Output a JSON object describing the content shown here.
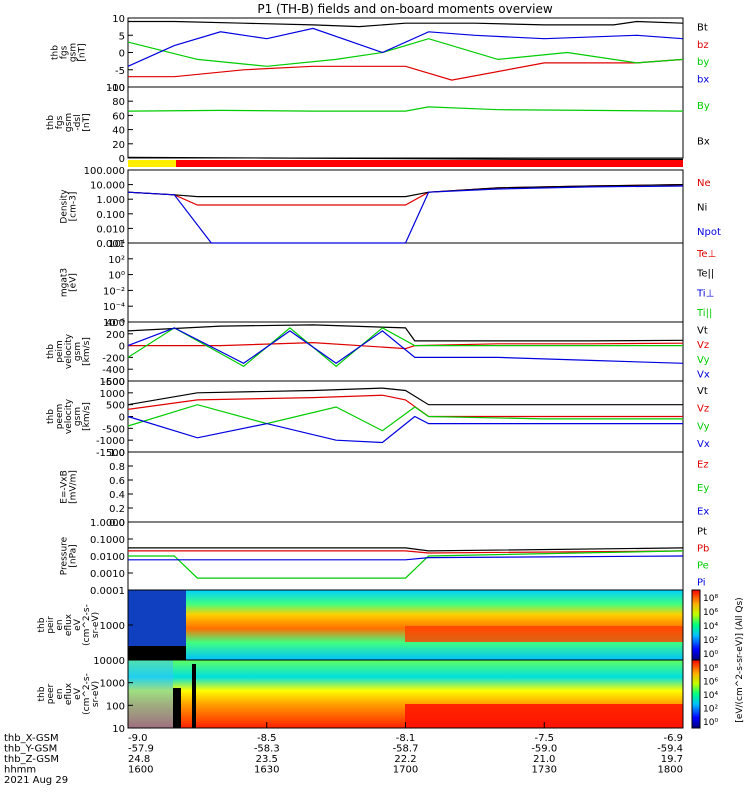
{
  "title": "P1 (TH-B) fields and on-board moments overview",
  "colors": {
    "black": "#000000",
    "red": "#e00000",
    "green": "#00cc00",
    "blue": "#0000e0",
    "yellow": "#ffee00",
    "bar_red": "#ff0000"
  },
  "panels": [
    {
      "id": "fgs",
      "ylabel": [
        "thb",
        "fgs",
        "gsm",
        "[nT]"
      ],
      "ticks": [
        "10",
        "5",
        "0",
        "-5",
        "-10"
      ],
      "legend": [
        {
          "text": "Bt",
          "color": "#000000"
        },
        {
          "text": "bz",
          "color": "#e00000"
        },
        {
          "text": "by",
          "color": "#00cc00"
        },
        {
          "text": "bx",
          "color": "#0000e0"
        }
      ]
    },
    {
      "id": "fgs-dsl",
      "ylabel": [
        "thb",
        "fgs",
        "gsm",
        "-dsl",
        "[nT]"
      ],
      "ticks": [
        "100",
        "80",
        "60",
        "40",
        "20",
        "0"
      ],
      "legend": [
        {
          "text": "By",
          "color": "#00cc00"
        },
        {
          "text": "Bx",
          "color": "#000000"
        }
      ]
    },
    {
      "id": "density",
      "ylabel": [
        "Density",
        "[cm-3]"
      ],
      "ticks": [
        "100.000",
        "10.000",
        "1.000",
        "0.100",
        "0.010",
        "0.001"
      ],
      "legend": [
        {
          "text": "Ne",
          "color": "#e00000"
        },
        {
          "text": "Ni",
          "color": "#000000"
        },
        {
          "text": "Npot",
          "color": "#0000e0"
        }
      ]
    },
    {
      "id": "temperature",
      "ylabel": [
        "mgat3",
        "[eV]"
      ],
      "ticks": [
        "10⁴",
        "10²",
        "10⁰",
        "10⁻²",
        "10⁻⁴",
        "10⁻⁶"
      ],
      "legend": [
        {
          "text": "Te⊥",
          "color": "#e00000"
        },
        {
          "text": "Te||",
          "color": "#000000"
        },
        {
          "text": "Ti⊥",
          "color": "#0000e0"
        },
        {
          "text": "Ti||",
          "color": "#00cc00"
        }
      ]
    },
    {
      "id": "peim-velocity",
      "ylabel": [
        "thb",
        "peim",
        "velocity",
        "gsm",
        "[km/s]"
      ],
      "ticks": [
        "400",
        "200",
        "0",
        "-200",
        "-400",
        "-600"
      ],
      "legend": [
        {
          "text": "Vt",
          "color": "#000000"
        },
        {
          "text": "Vz",
          "color": "#e00000"
        },
        {
          "text": "Vy",
          "color": "#00cc00"
        },
        {
          "text": "Vx",
          "color": "#0000e0"
        }
      ]
    },
    {
      "id": "peem-velocity",
      "ylabel": [
        "thb",
        "peem",
        "velocity",
        "gsm",
        "[km/s]"
      ],
      "ticks": [
        "1500",
        "1000",
        "500",
        "0",
        "-500",
        "-1000",
        "-1500"
      ],
      "legend": [
        {
          "text": "Vt",
          "color": "#000000"
        },
        {
          "text": "Vz",
          "color": "#e00000"
        },
        {
          "text": "Vy",
          "color": "#00cc00"
        },
        {
          "text": "Vx",
          "color": "#0000e0"
        }
      ]
    },
    {
      "id": "efield",
      "ylabel": [
        "E=-VxB",
        "[mV/m]"
      ],
      "ticks": [
        "1.0",
        "0.8",
        "0.6",
        "0.4",
        "0.2",
        "0.0"
      ],
      "legend": [
        {
          "text": "Ez",
          "color": "#e00000"
        },
        {
          "text": "Ey",
          "color": "#00cc00"
        },
        {
          "text": "Ex",
          "color": "#0000e0"
        }
      ]
    },
    {
      "id": "pressure",
      "ylabel": [
        "Pressure",
        "[nPa]"
      ],
      "ticks": [
        "1.0000",
        "0.1000",
        "0.0100",
        "0.0010",
        "0.0001"
      ],
      "legend": [
        {
          "text": "Pt",
          "color": "#000000"
        },
        {
          "text": "Pb",
          "color": "#e00000"
        },
        {
          "text": "Pe",
          "color": "#00cc00"
        },
        {
          "text": "Pi",
          "color": "#0000e0"
        }
      ]
    },
    {
      "id": "peir-spectrogram",
      "ylabel": [
        "thb",
        "peir",
        "en",
        "eflux",
        "eV",
        "(cm^2-s-",
        "sr-eV)"
      ],
      "ticks": [
        "1000"
      ]
    },
    {
      "id": "peer-spectrogram",
      "ylabel": [
        "thb",
        "peer",
        "en",
        "eflux",
        "eV",
        "(cm^2-s-",
        "sr-eV)"
      ],
      "ticks": [
        "10000",
        "1000",
        "100",
        "10"
      ]
    }
  ],
  "colorbar": {
    "label": "[eV/(cm^2-s-sr-eV)] (All Qs)",
    "ticks_upper": [
      "10⁸",
      "10⁶",
      "10⁴",
      "10²",
      "10⁰"
    ],
    "ticks_lower": [
      "10⁸",
      "10⁶",
      "10⁴",
      "10²",
      "10⁰"
    ]
  },
  "xaxis": {
    "row_labels": [
      "thb_X-GSM",
      "thb_Y-GSM",
      "thb_Z-GSM",
      "hhmm",
      "2021 Aug 29"
    ],
    "columns": [
      [
        "-9.0",
        "-57.9",
        "24.8",
        "1600"
      ],
      [
        "-8.5",
        "-58.3",
        "23.5",
        "1630"
      ],
      [
        "-8.1",
        "-58.7",
        "22.2",
        "1700"
      ],
      [
        "-7.5",
        "-59.0",
        "21.0",
        "1730"
      ],
      [
        "-6.9",
        "-59.4",
        "19.7",
        "1800"
      ]
    ]
  },
  "chart_data": {
    "type": "line",
    "title": "P1 (TH-B) fields and on-board moments overview",
    "x_unit": "hhmm",
    "x_range": [
      1600,
      1800
    ],
    "x_ticks": [
      1600,
      1630,
      1700,
      1730,
      1800
    ],
    "panels": [
      {
        "name": "thb fgs gsm [nT]",
        "ylim": [
          -10,
          10
        ],
        "series": [
          {
            "name": "Bt",
            "color": "#000000",
            "x": [
              0,
              10,
              25,
              40,
              50,
              60,
              75,
              90,
              105,
              110,
              120
            ],
            "y": [
              9,
              9,
              8.5,
              8,
              7.5,
              8.5,
              8.5,
              8,
              8,
              9,
              8.5
            ]
          },
          {
            "name": "bz",
            "color": "#e00000",
            "x": [
              0,
              10,
              25,
              40,
              60,
              70,
              90,
              110,
              120
            ],
            "y": [
              -7,
              -7,
              -5,
              -4,
              -4,
              -8,
              -3,
              -3,
              -2
            ]
          },
          {
            "name": "by",
            "color": "#00cc00",
            "x": [
              0,
              15,
              30,
              45,
              55,
              65,
              80,
              95,
              110,
              120
            ],
            "y": [
              3,
              -2,
              -4,
              -2,
              0,
              4,
              -2,
              0,
              -3,
              -2
            ]
          },
          {
            "name": "bx",
            "color": "#0000e0",
            "x": [
              0,
              10,
              20,
              30,
              40,
              55,
              65,
              75,
              90,
              110,
              120
            ],
            "y": [
              -4,
              2,
              6,
              4,
              7,
              0,
              6,
              5,
              4,
              5,
              4
            ]
          }
        ]
      },
      {
        "name": "thb fgs gsm -dsl [nT]",
        "ylim": [
          0,
          100
        ],
        "series": [
          {
            "name": "By",
            "color": "#00cc00",
            "x": [
              0,
              20,
              40,
              60,
              65,
              80,
              100,
              120
            ],
            "y": [
              66,
              67,
              66,
              66,
              72,
              68,
              67,
              66
            ]
          },
          {
            "name": "Bx",
            "color": "#000000",
            "x": [
              0,
              30,
              60,
              90,
              120
            ],
            "y": [
              1,
              0,
              -1,
              -2,
              -2
            ]
          }
        ]
      },
      {
        "name": "Density [cm-3]",
        "ylim": [
          0.001,
          100
        ],
        "log": true,
        "series": [
          {
            "name": "Ne",
            "color": "#e00000",
            "x": [
              0,
              10,
              15,
              60,
              65,
              80,
              100,
              120
            ],
            "y": [
              3,
              2,
              0.4,
              0.4,
              3,
              6,
              8,
              10
            ]
          },
          {
            "name": "Ni",
            "color": "#000000",
            "x": [
              0,
              10,
              15,
              60,
              65,
              80,
              100,
              120
            ],
            "y": [
              3,
              2,
              1.5,
              1.5,
              3,
              6,
              8,
              10
            ]
          },
          {
            "name": "Npot",
            "color": "#0000e0",
            "x": [
              0,
              10,
              18,
              60,
              65,
              80,
              100,
              120
            ],
            "y": [
              3,
              2,
              0.001,
              0.001,
              3,
              5,
              7,
              8
            ]
          }
        ]
      },
      {
        "name": "thb peim velocity gsm [km/s]",
        "ylim": [
          -600,
          400
        ],
        "series": [
          {
            "name": "Vt",
            "color": "#000000",
            "x": [
              0,
              20,
              40,
              60,
              62,
              80,
              100,
              120
            ],
            "y": [
              250,
              330,
              350,
              300,
              80,
              80,
              80,
              90
            ]
          },
          {
            "name": "Vz",
            "color": "#e00000",
            "x": [
              0,
              20,
              40,
              60,
              62,
              80,
              100,
              120
            ],
            "y": [
              0,
              0,
              50,
              -50,
              0,
              30,
              30,
              40
            ]
          },
          {
            "name": "Vy",
            "color": "#00cc00",
            "x": [
              0,
              10,
              25,
              35,
              45,
              55,
              62,
              80,
              100,
              120
            ],
            "y": [
              -200,
              300,
              -350,
              300,
              -350,
              300,
              0,
              0,
              0,
              0
            ]
          },
          {
            "name": "Vx",
            "color": "#0000e0",
            "x": [
              0,
              10,
              25,
              35,
              45,
              55,
              62,
              80,
              100,
              120
            ],
            "y": [
              0,
              300,
              -300,
              250,
              -300,
              250,
              -200,
              -200,
              -250,
              -300
            ]
          }
        ]
      },
      {
        "name": "thb peem velocity gsm [km/s]",
        "ylim": [
          -1500,
          1500
        ],
        "series": [
          {
            "name": "Vt",
            "color": "#000000",
            "x": [
              0,
              15,
              40,
              55,
              60,
              65,
              90,
              120
            ],
            "y": [
              500,
              1000,
              1100,
              1200,
              1100,
              500,
              500,
              500
            ]
          },
          {
            "name": "Vz",
            "color": "#e00000",
            "x": [
              0,
              15,
              40,
              55,
              60,
              65,
              90,
              120
            ],
            "y": [
              300,
              700,
              800,
              900,
              700,
              0,
              0,
              0
            ]
          },
          {
            "name": "Vy",
            "color": "#00cc00",
            "x": [
              0,
              15,
              30,
              45,
              55,
              62,
              65,
              90,
              120
            ],
            "y": [
              -400,
              500,
              -300,
              400,
              -600,
              400,
              0,
              -100,
              -100
            ]
          },
          {
            "name": "Vx",
            "color": "#0000e0",
            "x": [
              0,
              15,
              30,
              45,
              55,
              62,
              65,
              90,
              120
            ],
            "y": [
              0,
              -900,
              -300,
              -1000,
              -1100,
              0,
              -300,
              -300,
              -300
            ]
          }
        ]
      },
      {
        "name": "Pressure [nPa]",
        "ylim": [
          0.0001,
          1
        ],
        "log": true,
        "series": [
          {
            "name": "Pt",
            "color": "#000000",
            "x": [
              0,
              10,
              60,
              65,
              120
            ],
            "y": [
              0.03,
              0.03,
              0.03,
              0.02,
              0.03
            ]
          },
          {
            "name": "Pb",
            "color": "#e00000",
            "x": [
              0,
              10,
              60,
              65,
              120
            ],
            "y": [
              0.02,
              0.02,
              0.02,
              0.015,
              0.02
            ]
          },
          {
            "name": "Pe",
            "color": "#00cc00",
            "x": [
              0,
              10,
              15,
              60,
              65,
              120
            ],
            "y": [
              0.01,
              0.01,
              0.0005,
              0.0005,
              0.01,
              0.02
            ]
          },
          {
            "name": "Pi",
            "color": "#0000e0",
            "x": [
              0,
              10,
              60,
              65,
              120
            ],
            "y": [
              0.006,
              0.006,
              0.006,
              0.008,
              0.01
            ]
          }
        ]
      }
    ]
  }
}
